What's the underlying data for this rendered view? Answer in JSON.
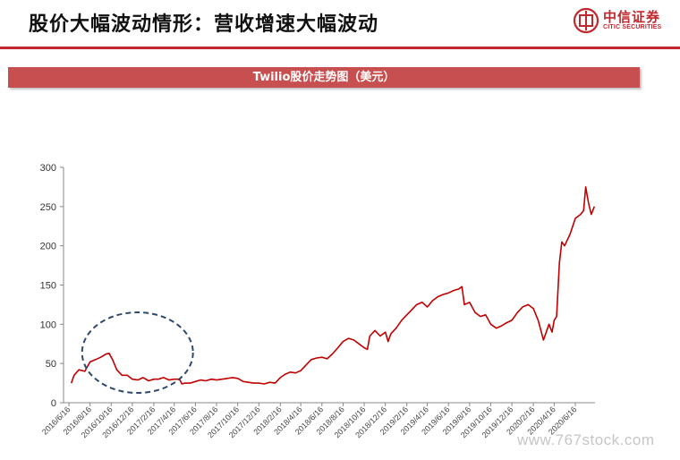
{
  "slide": {
    "title": "股价大幅波动情形：营收增速大幅波动",
    "logo_cn": "中信证券",
    "logo_en": "CITIC SECURITIES",
    "logo_icon": "citic-logo-icon"
  },
  "colors": {
    "accent": "#c0282e",
    "banner": "#c84f4f",
    "series": "#c00000",
    "ellipse": "#2e4a6b"
  },
  "watermark": "www.767stock.com",
  "chart_data": {
    "type": "line",
    "title": "Twilio股价走势图（美元）",
    "xlabel": "",
    "ylabel": "",
    "ylim": [
      0,
      300
    ],
    "yticks": [
      0,
      50,
      100,
      150,
      200,
      250,
      300
    ],
    "grid": false,
    "x_tick_labels": [
      "2016/6/16",
      "2016/8/16",
      "2016/10/16",
      "2016/12/16",
      "2017/2/16",
      "2017/4/16",
      "2017/6/16",
      "2017/8/16",
      "2017/10/16",
      "2017/12/16",
      "2018/2/16",
      "2018/4/16",
      "2018/6/16",
      "2018/8/16",
      "2018/10/16",
      "2018/12/16",
      "2019/2/16",
      "2019/4/16",
      "2019/6/16",
      "2019/8/16",
      "2019/10/16",
      "2019/12/16",
      "2020/2/16",
      "2020/4/16",
      "2020/6/16"
    ],
    "annotation": "dashed ellipse around 2016/8–2017/4 low-volatility period",
    "series": [
      {
        "points": [
          [
            "2016/6/23",
            25
          ],
          [
            "2016/7/1",
            35
          ],
          [
            "2016/7/15",
            42
          ],
          [
            "2016/8/1",
            40
          ],
          [
            "2016/8/16",
            52
          ],
          [
            "2016/9/1",
            55
          ],
          [
            "2016/9/16",
            58
          ],
          [
            "2016/10/1",
            62
          ],
          [
            "2016/10/10",
            63
          ],
          [
            "2016/10/20",
            55
          ],
          [
            "2016/11/1",
            42
          ],
          [
            "2016/11/16",
            35
          ],
          [
            "2016/12/1",
            35
          ],
          [
            "2016/12/16",
            30
          ],
          [
            "2017/1/1",
            29
          ],
          [
            "2017/1/16",
            32
          ],
          [
            "2017/2/1",
            28
          ],
          [
            "2017/2/16",
            30
          ],
          [
            "2017/3/1",
            30
          ],
          [
            "2017/3/16",
            32
          ],
          [
            "2017/4/1",
            29
          ],
          [
            "2017/4/16",
            30
          ],
          [
            "2017/5/1",
            30
          ],
          [
            "2017/5/8",
            24
          ],
          [
            "2017/5/16",
            25
          ],
          [
            "2017/6/1",
            25
          ],
          [
            "2017/6/16",
            27
          ],
          [
            "2017/7/1",
            29
          ],
          [
            "2017/7/16",
            28
          ],
          [
            "2017/8/1",
            30
          ],
          [
            "2017/8/16",
            29
          ],
          [
            "2017/9/1",
            30
          ],
          [
            "2017/9/16",
            31
          ],
          [
            "2017/10/1",
            32
          ],
          [
            "2017/10/16",
            31
          ],
          [
            "2017/11/1",
            27
          ],
          [
            "2017/11/16",
            26
          ],
          [
            "2017/12/1",
            25
          ],
          [
            "2017/12/16",
            25
          ],
          [
            "2018/1/1",
            24
          ],
          [
            "2018/1/16",
            26
          ],
          [
            "2018/2/1",
            25
          ],
          [
            "2018/2/16",
            32
          ],
          [
            "2018/3/1",
            36
          ],
          [
            "2018/3/16",
            39
          ],
          [
            "2018/4/1",
            38
          ],
          [
            "2018/4/16",
            41
          ],
          [
            "2018/5/1",
            48
          ],
          [
            "2018/5/16",
            55
          ],
          [
            "2018/6/1",
            57
          ],
          [
            "2018/6/16",
            58
          ],
          [
            "2018/7/1",
            56
          ],
          [
            "2018/7/16",
            62
          ],
          [
            "2018/8/1",
            70
          ],
          [
            "2018/8/16",
            78
          ],
          [
            "2018/9/1",
            82
          ],
          [
            "2018/9/16",
            80
          ],
          [
            "2018/10/1",
            75
          ],
          [
            "2018/10/16",
            70
          ],
          [
            "2018/10/25",
            68
          ],
          [
            "2018/11/1",
            85
          ],
          [
            "2018/11/16",
            92
          ],
          [
            "2018/12/1",
            85
          ],
          [
            "2018/12/16",
            90
          ],
          [
            "2018/12/24",
            78
          ],
          [
            "2019/1/1",
            88
          ],
          [
            "2019/1/16",
            95
          ],
          [
            "2019/2/1",
            105
          ],
          [
            "2019/2/16",
            112
          ],
          [
            "2019/3/1",
            118
          ],
          [
            "2019/3/16",
            125
          ],
          [
            "2019/4/1",
            128
          ],
          [
            "2019/4/16",
            122
          ],
          [
            "2019/5/1",
            130
          ],
          [
            "2019/5/16",
            135
          ],
          [
            "2019/6/1",
            138
          ],
          [
            "2019/6/16",
            140
          ],
          [
            "2019/7/1",
            143
          ],
          [
            "2019/7/16",
            145
          ],
          [
            "2019/7/25",
            148
          ],
          [
            "2019/8/1",
            125
          ],
          [
            "2019/8/16",
            128
          ],
          [
            "2019/9/1",
            115
          ],
          [
            "2019/9/16",
            110
          ],
          [
            "2019/10/1",
            112
          ],
          [
            "2019/10/16",
            100
          ],
          [
            "2019/11/1",
            95
          ],
          [
            "2019/11/16",
            98
          ],
          [
            "2019/12/1",
            102
          ],
          [
            "2019/12/16",
            105
          ],
          [
            "2020/1/1",
            115
          ],
          [
            "2020/1/16",
            122
          ],
          [
            "2020/2/1",
            125
          ],
          [
            "2020/2/16",
            120
          ],
          [
            "2020/3/1",
            105
          ],
          [
            "2020/3/16",
            80
          ],
          [
            "2020/4/1",
            100
          ],
          [
            "2020/4/10",
            90
          ],
          [
            "2020/4/16",
            105
          ],
          [
            "2020/4/23",
            110
          ],
          [
            "2020/5/1",
            178
          ],
          [
            "2020/5/8",
            205
          ],
          [
            "2020/5/16",
            200
          ],
          [
            "2020/6/1",
            215
          ],
          [
            "2020/6/16",
            235
          ],
          [
            "2020/7/1",
            240
          ],
          [
            "2020/7/10",
            245
          ],
          [
            "2020/7/16",
            275
          ],
          [
            "2020/7/24",
            255
          ],
          [
            "2020/8/1",
            240
          ],
          [
            "2020/8/10",
            250
          ]
        ]
      }
    ]
  }
}
